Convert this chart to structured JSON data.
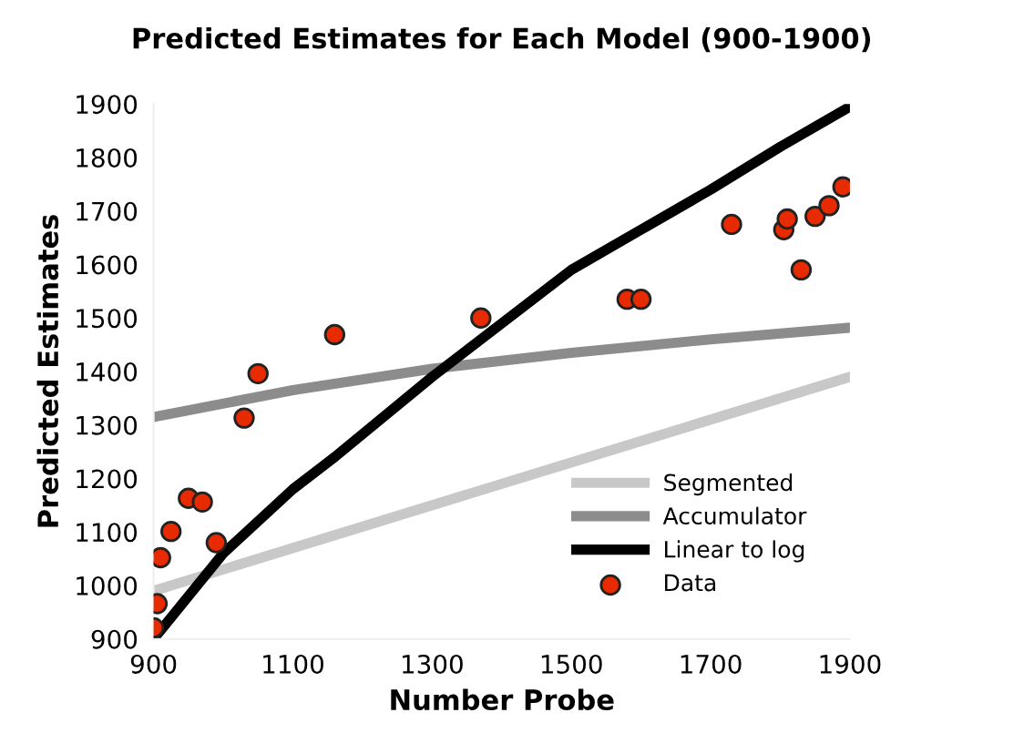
{
  "chart_data": {
    "type": "line",
    "title": "Predicted Estimates for Each Model (900-1900)",
    "xlabel": "Number Probe",
    "ylabel": "Predicted Estimates",
    "xlim": [
      900,
      1900
    ],
    "xticks": [
      900,
      1100,
      1300,
      1500,
      1700,
      1900
    ],
    "ylim": [
      900,
      1900
    ],
    "yticks": [
      900,
      1000,
      1100,
      1200,
      1300,
      1400,
      1500,
      1600,
      1700,
      1800,
      1900
    ],
    "grid": false,
    "legend": "bottom right",
    "series": [
      {
        "name": "Segmented",
        "color": "#c8c8c8",
        "x": [
          900,
          1900
        ],
        "values": [
          990,
          1390
        ]
      },
      {
        "name": "Accumulator",
        "color": "#8c8c8c",
        "x": [
          900,
          1100,
          1300,
          1500,
          1700,
          1900
        ],
        "values": [
          1315,
          1365,
          1405,
          1435,
          1460,
          1482
        ]
      },
      {
        "name": "Linear to log",
        "color": "#000000",
        "x": [
          900,
          1000,
          1100,
          1160,
          1300,
          1380,
          1500,
          1600,
          1700,
          1800,
          1900
        ],
        "values": [
          900,
          1060,
          1180,
          1240,
          1390,
          1470,
          1590,
          1665,
          1740,
          1820,
          1895
        ]
      },
      {
        "name": "Data",
        "type": "scatter",
        "color": "#e82a00",
        "marker": "circle",
        "x": [
          900,
          905,
          910,
          925,
          950,
          970,
          990,
          1030,
          1050,
          1160,
          1370,
          1580,
          1600,
          1730,
          1805,
          1810,
          1830,
          1850,
          1870,
          1890
        ],
        "values": [
          921,
          966,
          1052,
          1101,
          1163,
          1156,
          1080,
          1313,
          1396,
          1469,
          1500,
          1535,
          1535,
          1675,
          1665,
          1685,
          1590,
          1690,
          1710,
          1745
        ]
      }
    ]
  }
}
